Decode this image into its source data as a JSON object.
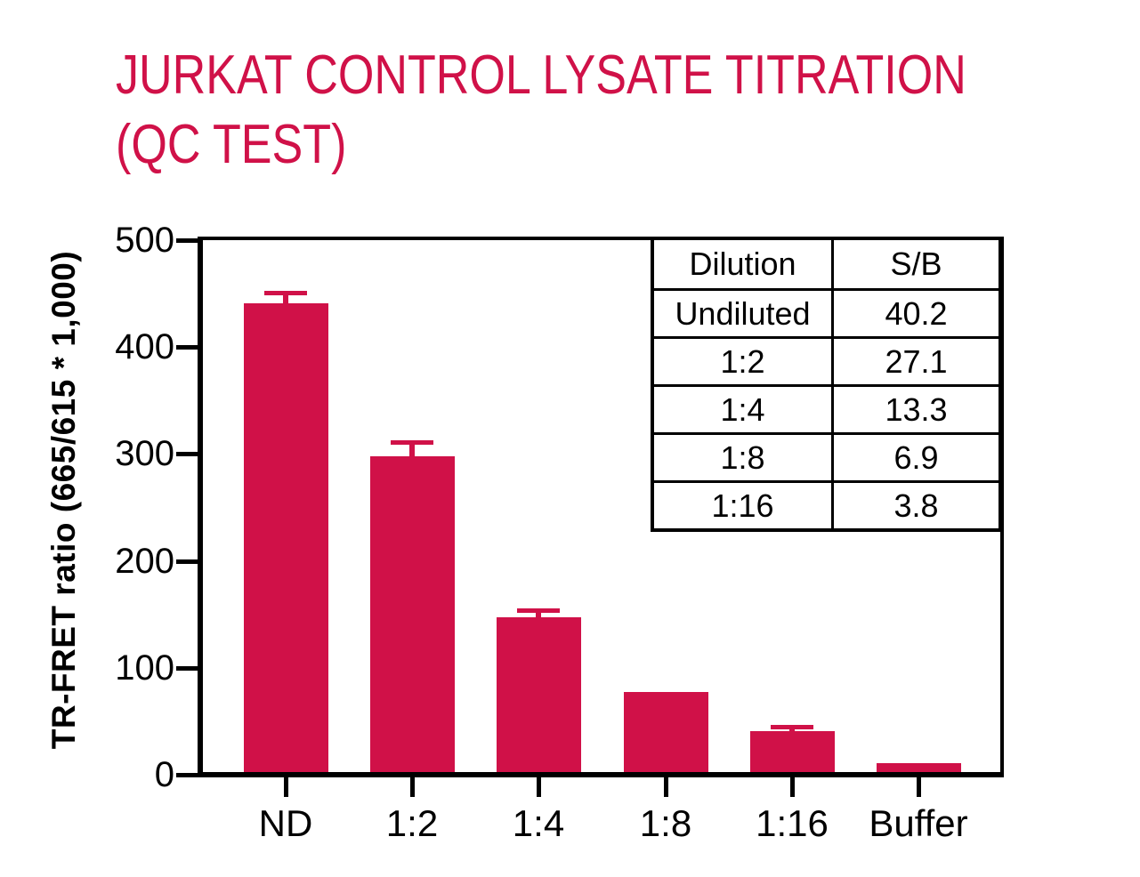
{
  "title": {
    "line1": "JURKAT CONTROL LYSATE TITRATION",
    "line2": "(QC TEST)"
  },
  "chart_data": {
    "type": "bar",
    "title": "JURKAT CONTROL LYSATE TITRATION (QC TEST)",
    "categories": [
      "ND",
      "1:2",
      "1:4",
      "1:8",
      "1:16",
      "Buffer"
    ],
    "values": [
      441,
      298,
      147,
      77,
      41,
      11
    ],
    "errors_plus": [
      10,
      13,
      7,
      0,
      4,
      0
    ],
    "xlabel": "",
    "ylabel": "TR-FRET ratio (665/615 * 1,000)",
    "ylim": [
      0,
      500
    ],
    "yticks": [
      0,
      100,
      200,
      300,
      400,
      500
    ],
    "grid": false,
    "legend": "none",
    "bar_color": "#d01148"
  },
  "inset_table": {
    "headers": [
      "Dilution",
      "S/B"
    ],
    "rows": [
      [
        "Undiluted",
        "40.2"
      ],
      [
        "1:2",
        "27.1"
      ],
      [
        "1:4",
        "13.3"
      ],
      [
        "1:8",
        "6.9"
      ],
      [
        "1:16",
        "3.8"
      ]
    ]
  },
  "colors": {
    "accent": "#d01148",
    "axis": "#000000",
    "background": "#ffffff"
  }
}
